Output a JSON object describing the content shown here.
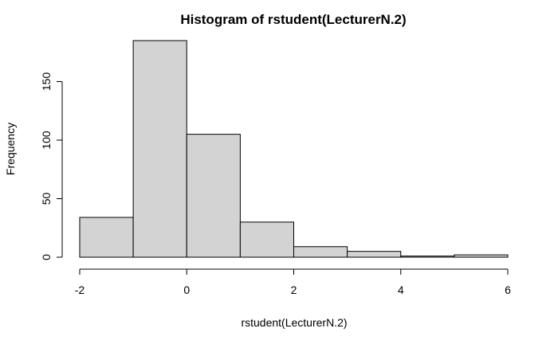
{
  "chart_data": {
    "type": "bar",
    "title": "Histogram of rstudent(LecturerN.2)",
    "xlabel": "rstudent(LecturerN.2)",
    "ylabel": "Frequency",
    "bins": [
      {
        "from": -2,
        "to": -1,
        "count": 34
      },
      {
        "from": -1,
        "to": 0,
        "count": 185
      },
      {
        "from": 0,
        "to": 1,
        "count": 105
      },
      {
        "from": 1,
        "to": 2,
        "count": 30
      },
      {
        "from": 2,
        "to": 3,
        "count": 9
      },
      {
        "from": 3,
        "to": 4,
        "count": 5
      },
      {
        "from": 4,
        "to": 5,
        "count": 1
      },
      {
        "from": 5,
        "to": 6,
        "count": 2
      }
    ],
    "xlim": [
      -2,
      6
    ],
    "ylim": [
      0,
      185
    ],
    "x_ticks": [
      -2,
      0,
      2,
      4,
      6
    ],
    "y_ticks": [
      0,
      50,
      100,
      150
    ],
    "bar_color": "#d3d3d3",
    "edge_color": "#000000",
    "grid": false
  }
}
